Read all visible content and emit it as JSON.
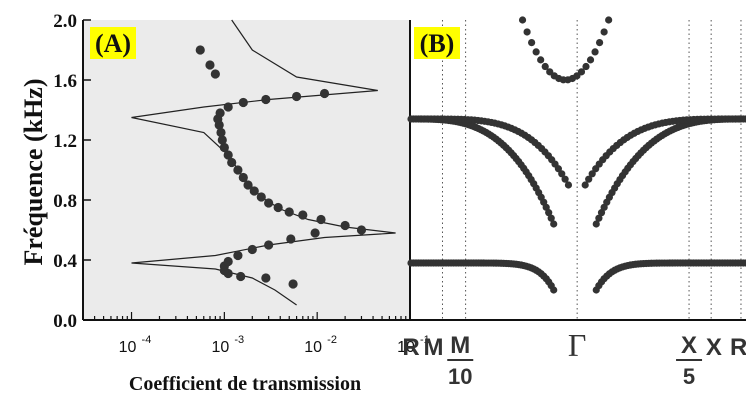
{
  "colors": {
    "panel_bg": "#ebebeb",
    "label_bg": "#ffff00",
    "marker": "#333333",
    "curve": "#222222",
    "axis": "#111111"
  },
  "chart_data": [
    {
      "type": "scatter",
      "panel_label": "(A)",
      "xlabel": "Coefficient de transmission",
      "ylabel": "Fréquence (kHz)",
      "xscale": "log",
      "xlim": [
        3e-05,
        0.1
      ],
      "ylim": [
        0.0,
        2.0
      ],
      "xticks": [
        0.0001,
        0.001,
        0.01,
        0.1
      ],
      "xtick_labels": [
        {
          "base": "10",
          "exp": "-4"
        },
        {
          "base": "10",
          "exp": "-3"
        },
        {
          "base": "10",
          "exp": "-2"
        },
        {
          "base": "10",
          "exp": "-1"
        }
      ],
      "yticks": [
        0.0,
        0.4,
        0.8,
        1.2,
        1.6,
        2.0
      ],
      "ytick_labels": [
        "0.0",
        "0.4",
        "0.8",
        "1.2",
        "1.6",
        "2.0"
      ],
      "series": [
        {
          "kind": "markers",
          "points": [
            {
              "x": 0.0055,
              "y": 0.24
            },
            {
              "x": 0.0028,
              "y": 0.28
            },
            {
              "x": 0.0015,
              "y": 0.29
            },
            {
              "x": 0.0011,
              "y": 0.31
            },
            {
              "x": 0.001,
              "y": 0.33
            },
            {
              "x": 0.001,
              "y": 0.36
            },
            {
              "x": 0.0011,
              "y": 0.39
            },
            {
              "x": 0.0014,
              "y": 0.43
            },
            {
              "x": 0.002,
              "y": 0.47
            },
            {
              "x": 0.003,
              "y": 0.5
            },
            {
              "x": 0.0052,
              "y": 0.54
            },
            {
              "x": 0.0095,
              "y": 0.58
            },
            {
              "x": 0.03,
              "y": 0.6
            },
            {
              "x": 0.02,
              "y": 0.63
            },
            {
              "x": 0.011,
              "y": 0.67
            },
            {
              "x": 0.007,
              "y": 0.7
            },
            {
              "x": 0.005,
              "y": 0.72
            },
            {
              "x": 0.0038,
              "y": 0.75
            },
            {
              "x": 0.003,
              "y": 0.78
            },
            {
              "x": 0.0025,
              "y": 0.82
            },
            {
              "x": 0.0021,
              "y": 0.86
            },
            {
              "x": 0.0018,
              "y": 0.9
            },
            {
              "x": 0.0016,
              "y": 0.95
            },
            {
              "x": 0.0014,
              "y": 1.0
            },
            {
              "x": 0.0012,
              "y": 1.05
            },
            {
              "x": 0.0011,
              "y": 1.1
            },
            {
              "x": 0.001,
              "y": 1.15
            },
            {
              "x": 0.00095,
              "y": 1.2
            },
            {
              "x": 0.00092,
              "y": 1.25
            },
            {
              "x": 0.00088,
              "y": 1.3
            },
            {
              "x": 0.00085,
              "y": 1.34
            },
            {
              "x": 0.0009,
              "y": 1.38
            },
            {
              "x": 0.0011,
              "y": 1.42
            },
            {
              "x": 0.0016,
              "y": 1.45
            },
            {
              "x": 0.0028,
              "y": 1.47
            },
            {
              "x": 0.006,
              "y": 1.49
            },
            {
              "x": 0.012,
              "y": 1.51
            },
            {
              "x": 0.0008,
              "y": 1.64
            },
            {
              "x": 0.0007,
              "y": 1.7
            },
            {
              "x": 0.00055,
              "y": 1.8
            }
          ]
        },
        {
          "kind": "curve",
          "points": [
            {
              "x": 0.006,
              "y": 0.1
            },
            {
              "x": 0.0035,
              "y": 0.2
            },
            {
              "x": 0.002,
              "y": 0.28
            },
            {
              "x": 0.0008,
              "y": 0.34
            },
            {
              "x": 0.0001,
              "y": 0.38
            },
            {
              "x": 0.0008,
              "y": 0.43
            },
            {
              "x": 0.003,
              "y": 0.5
            },
            {
              "x": 0.012,
              "y": 0.55
            },
            {
              "x": 0.07,
              "y": 0.58
            },
            {
              "x": 0.02,
              "y": 0.62
            },
            {
              "x": 0.008,
              "y": 0.67
            },
            {
              "x": 0.004,
              "y": 0.74
            },
            {
              "x": 0.0025,
              "y": 0.82
            },
            {
              "x": 0.0016,
              "y": 0.95
            },
            {
              "x": 0.0011,
              "y": 1.1
            },
            {
              "x": 0.0006,
              "y": 1.25
            },
            {
              "x": 0.0001,
              "y": 1.35
            },
            {
              "x": 0.0006,
              "y": 1.42
            },
            {
              "x": 0.003,
              "y": 1.47
            },
            {
              "x": 0.045,
              "y": 1.53
            },
            {
              "x": 0.006,
              "y": 1.62
            },
            {
              "x": 0.002,
              "y": 1.8
            },
            {
              "x": 0.0012,
              "y": 2.0
            }
          ]
        }
      ]
    },
    {
      "type": "scatter",
      "panel_label": "(B)",
      "xlabel": "",
      "ylim": [
        0.0,
        2.0
      ],
      "xlim": [
        0,
        100
      ],
      "xtick_labels": [
        {
          "text": "R",
          "pos": 0
        },
        {
          "text": "M",
          "pos": 6.7
        },
        {
          "text": "M",
          "denom": "10",
          "pos": 14.7
        },
        {
          "text": "Γ",
          "pos": 49.6
        },
        {
          "text": "X",
          "denom": "5",
          "pos": 83
        },
        {
          "text": "X",
          "pos": 90.4
        },
        {
          "text": "R",
          "pos": 97.8
        }
      ],
      "vlines": [
        9.4,
        16.3,
        49.6,
        83.0,
        89.6,
        98.5
      ],
      "series": [
        {
          "name": "",
          "x_start": 0,
          "x_end": 42.6,
          "y_start": 0.38,
          "y_end": 0.2,
          "curve": "low",
          "count": 58
        },
        {
          "name": "",
          "x_start": 55.3,
          "x_end": 100,
          "y_start": 0.2,
          "y_end": 0.38,
          "curve": "low",
          "count": 58
        },
        {
          "name": "",
          "x_start": 0,
          "x_end": 42.6,
          "y_start": 1.34,
          "y_end": 0.64,
          "curve": "mid",
          "count": 58
        },
        {
          "name": "",
          "x_start": 55.3,
          "x_end": 100,
          "y_start": 0.64,
          "y_end": 1.34,
          "curve": "mid",
          "count": 58
        },
        {
          "name": "",
          "x_start": 3,
          "x_end": 47,
          "y_start": 1.34,
          "y_end": 0.9,
          "curve": "mid2",
          "count": 45
        },
        {
          "name": "",
          "x_start": 52,
          "x_end": 98,
          "y_start": 0.9,
          "y_end": 1.34,
          "curve": "mid2",
          "count": 45
        },
        {
          "name": "",
          "x_start": 33.3,
          "x_end": 59,
          "y_start": 2.0,
          "y_end": 2.0,
          "curve": "bowl",
          "vertex": 1.6,
          "count": 20
        }
      ]
    }
  ]
}
